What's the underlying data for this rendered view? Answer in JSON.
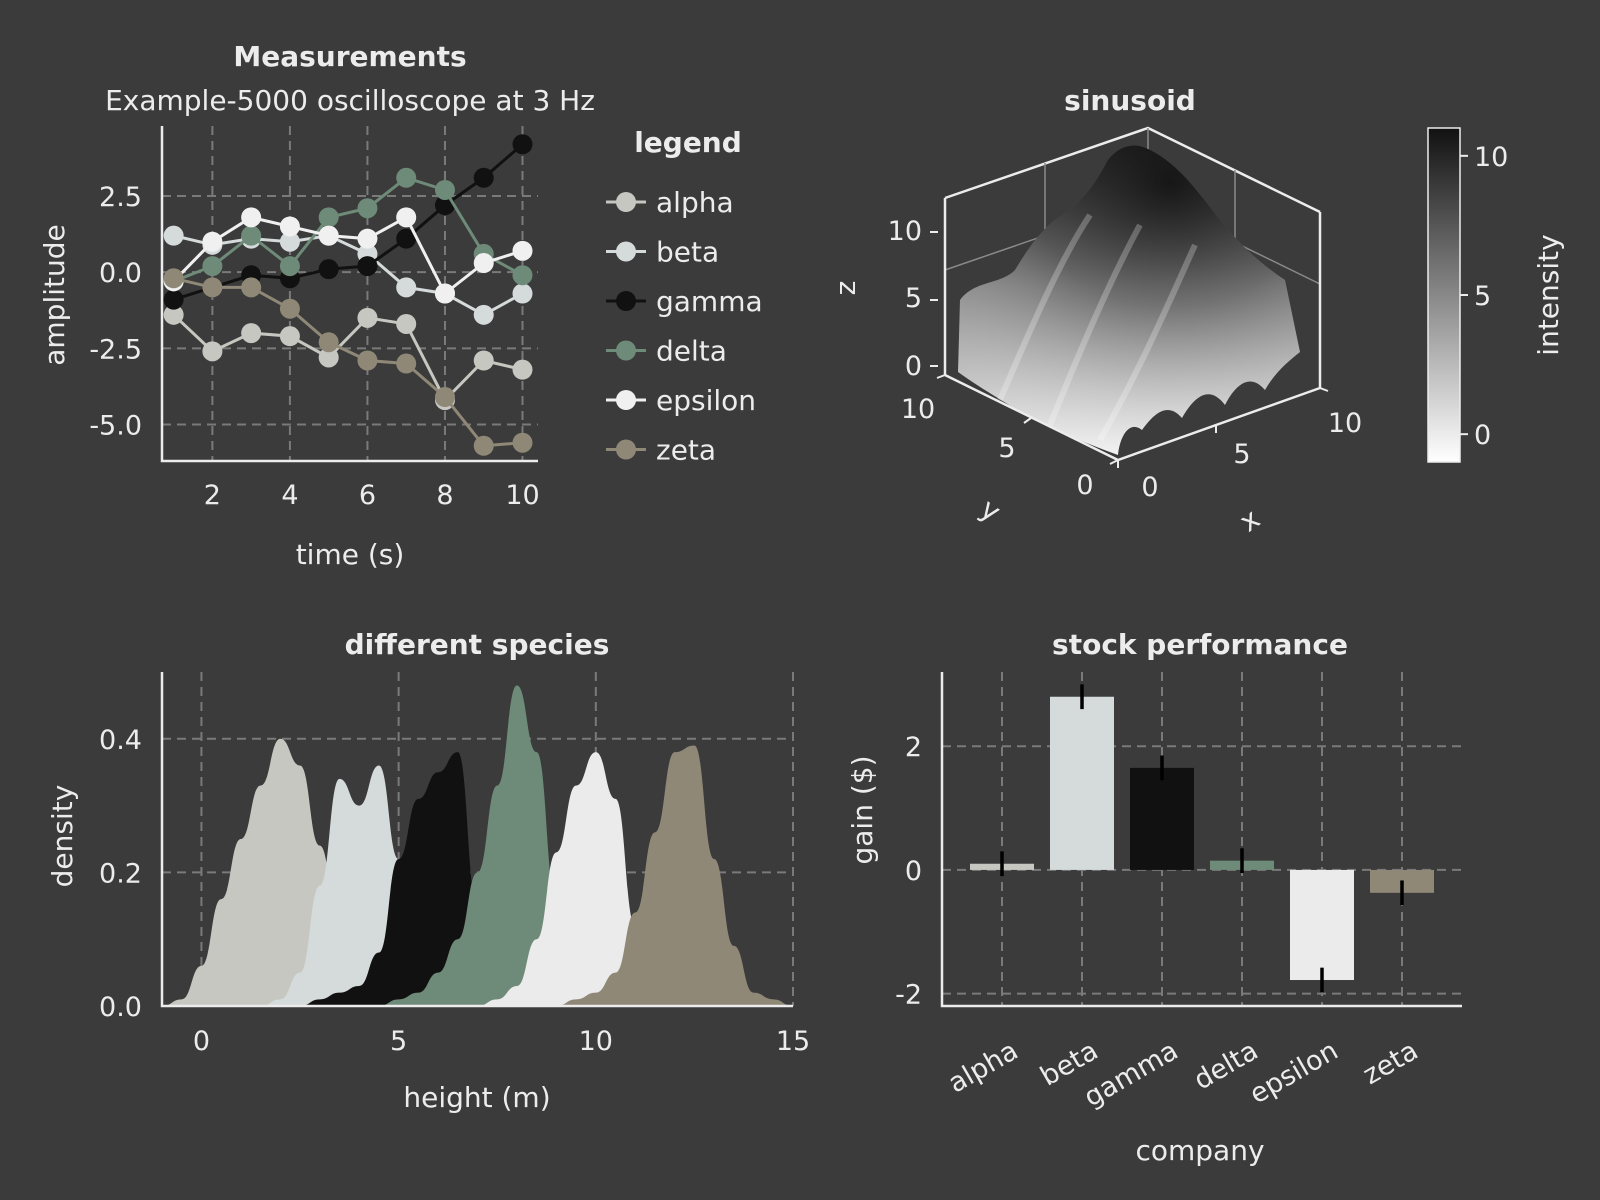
{
  "chart_data": [
    {
      "type": "line",
      "title": "Measurements",
      "subtitle": "Example-5000 oscilloscope at 3 Hz",
      "xlabel": "time (s)",
      "ylabel": "amplitude",
      "xlim": [
        0.7,
        10.4
      ],
      "ylim": [
        -6.2,
        4.8
      ],
      "xticks": [
        2,
        4,
        6,
        8,
        10
      ],
      "yticks": [
        2.5,
        0.0,
        -2.5,
        -5.0
      ],
      "ytick_labels": [
        "2.5",
        "0.0",
        "-2.5",
        "-5.0"
      ],
      "grid": true,
      "legend": {
        "title": "legend",
        "placement": "right"
      },
      "x": [
        1,
        2,
        3,
        4,
        5,
        6,
        7,
        8,
        9,
        10
      ],
      "series": [
        {
          "name": "alpha",
          "color": "#c6c7c1",
          "values": [
            -1.4,
            -2.6,
            -2.0,
            -2.1,
            -2.8,
            -1.5,
            -1.7,
            -4.2,
            -2.9,
            -3.2
          ]
        },
        {
          "name": "beta",
          "color": "#d5dadb",
          "values": [
            1.2,
            0.9,
            1.1,
            1.0,
            1.2,
            0.6,
            -0.5,
            -0.7,
            -1.4,
            -0.7
          ]
        },
        {
          "name": "gamma",
          "color": "#111111",
          "values": [
            -0.9,
            -0.5,
            -0.1,
            -0.2,
            0.1,
            0.2,
            1.1,
            2.2,
            3.1,
            4.2
          ]
        },
        {
          "name": "delta",
          "color": "#6e8a78",
          "values": [
            -0.3,
            0.2,
            1.2,
            0.2,
            1.8,
            2.1,
            3.1,
            2.7,
            0.6,
            -0.1
          ]
        },
        {
          "name": "epsilon",
          "color": "#f0f0f0",
          "values": [
            -0.3,
            1.0,
            1.8,
            1.5,
            1.2,
            1.1,
            1.8,
            -0.7,
            0.3,
            0.7
          ]
        },
        {
          "name": "zeta",
          "color": "#8f8877",
          "values": [
            -0.2,
            -0.5,
            -0.5,
            -1.2,
            -2.3,
            -2.9,
            -3.0,
            -4.1,
            -5.7,
            -5.6
          ]
        }
      ]
    },
    {
      "type": "surface",
      "title": "sinusoid",
      "xlabel": "x",
      "ylabel": "y",
      "zlabel": "z",
      "x_range": [
        0,
        10
      ],
      "y_range": [
        0,
        10
      ],
      "z_range": [
        -1,
        11
      ],
      "xticks": [
        0,
        5,
        10
      ],
      "yticks": [
        0,
        5,
        10
      ],
      "zticks": [
        0,
        5,
        10
      ],
      "colorbar": {
        "label": "intensity",
        "range": [
          -1,
          11
        ],
        "ticks": [
          0,
          5,
          10
        ],
        "colormap": "white-to-black"
      }
    },
    {
      "type": "area",
      "title": "different species",
      "xlabel": "height (m)",
      "ylabel": "density",
      "xlim": [
        -1,
        15
      ],
      "ylim": [
        0,
        0.5
      ],
      "xticks": [
        0,
        5,
        10,
        15
      ],
      "yticks": [
        0.0,
        0.2,
        0.4
      ],
      "ytick_labels": [
        "0.0",
        "0.2",
        "0.4"
      ],
      "grid": true,
      "x": [
        -1,
        -0.5,
        0,
        0.5,
        1,
        1.5,
        2,
        2.5,
        3,
        3.5,
        4,
        4.5,
        5,
        5.5,
        6,
        6.5,
        7,
        7.5,
        8,
        8.5,
        9,
        9.5,
        10,
        10.5,
        11,
        11.5,
        12,
        12.5,
        13,
        13.5,
        14,
        14.5,
        15
      ],
      "series": [
        {
          "name": "alpha",
          "color": "#c6c7c1",
          "values": [
            0.0,
            0.01,
            0.06,
            0.16,
            0.25,
            0.33,
            0.4,
            0.36,
            0.24,
            0.12,
            0.03,
            0.0,
            0.0,
            0.0,
            0.0,
            0.0,
            0.0,
            0.0,
            0.0,
            0.0,
            0.0,
            0.0,
            0.0,
            0.0,
            0.0,
            0.0,
            0.0,
            0.0,
            0.0,
            0.0,
            0.0,
            0.0,
            0.0
          ]
        },
        {
          "name": "beta",
          "color": "#d5dadb",
          "values": [
            0.0,
            0.0,
            0.0,
            0.0,
            0.0,
            0.0,
            0.01,
            0.05,
            0.18,
            0.34,
            0.3,
            0.36,
            0.22,
            0.07,
            0.01,
            0.0,
            0.0,
            0.0,
            0.0,
            0.0,
            0.0,
            0.0,
            0.0,
            0.0,
            0.0,
            0.0,
            0.0,
            0.0,
            0.0,
            0.0,
            0.0,
            0.0,
            0.0
          ]
        },
        {
          "name": "gamma",
          "color": "#111111",
          "values": [
            0.0,
            0.0,
            0.0,
            0.0,
            0.0,
            0.0,
            0.0,
            0.0,
            0.01,
            0.02,
            0.03,
            0.08,
            0.22,
            0.31,
            0.35,
            0.38,
            0.15,
            0.02,
            0.0,
            0.0,
            0.0,
            0.0,
            0.0,
            0.0,
            0.0,
            0.0,
            0.0,
            0.0,
            0.0,
            0.0,
            0.0,
            0.0,
            0.0
          ]
        },
        {
          "name": "delta",
          "color": "#6e8a78",
          "values": [
            0.0,
            0.0,
            0.0,
            0.0,
            0.0,
            0.0,
            0.0,
            0.0,
            0.0,
            0.0,
            0.0,
            0.0,
            0.01,
            0.02,
            0.05,
            0.1,
            0.2,
            0.33,
            0.48,
            0.38,
            0.16,
            0.03,
            0.0,
            0.0,
            0.0,
            0.0,
            0.0,
            0.0,
            0.0,
            0.0,
            0.0,
            0.0,
            0.0
          ]
        },
        {
          "name": "epsilon",
          "color": "#ebebeb",
          "values": [
            0.0,
            0.0,
            0.0,
            0.0,
            0.0,
            0.0,
            0.0,
            0.0,
            0.0,
            0.0,
            0.0,
            0.0,
            0.0,
            0.0,
            0.0,
            0.0,
            0.0,
            0.01,
            0.03,
            0.1,
            0.23,
            0.33,
            0.38,
            0.31,
            0.12,
            0.02,
            0.0,
            0.0,
            0.0,
            0.0,
            0.0,
            0.0,
            0.0
          ]
        },
        {
          "name": "zeta",
          "color": "#8f8877",
          "values": [
            0.0,
            0.0,
            0.0,
            0.0,
            0.0,
            0.0,
            0.0,
            0.0,
            0.0,
            0.0,
            0.0,
            0.0,
            0.0,
            0.0,
            0.0,
            0.0,
            0.0,
            0.0,
            0.0,
            0.0,
            0.0,
            0.01,
            0.02,
            0.05,
            0.14,
            0.26,
            0.38,
            0.39,
            0.22,
            0.09,
            0.02,
            0.01,
            0.0
          ]
        }
      ]
    },
    {
      "type": "bar",
      "title": "stock performance",
      "xlabel": "company",
      "ylabel": "gain ($)",
      "ylim": [
        -2.2,
        3.2
      ],
      "yticks": [
        2,
        0,
        -2
      ],
      "grid": true,
      "categories": [
        "alpha",
        "beta",
        "gamma",
        "delta",
        "epsilon",
        "zeta"
      ],
      "values": [
        0.1,
        2.8,
        1.65,
        0.15,
        -1.78,
        -0.37
      ],
      "errors": [
        0.2,
        0.2,
        0.2,
        0.2,
        0.2,
        0.2
      ],
      "colors": [
        "#c6c7c1",
        "#d5dadb",
        "#111111",
        "#6e8a78",
        "#ebebeb",
        "#8f8877"
      ]
    }
  ]
}
